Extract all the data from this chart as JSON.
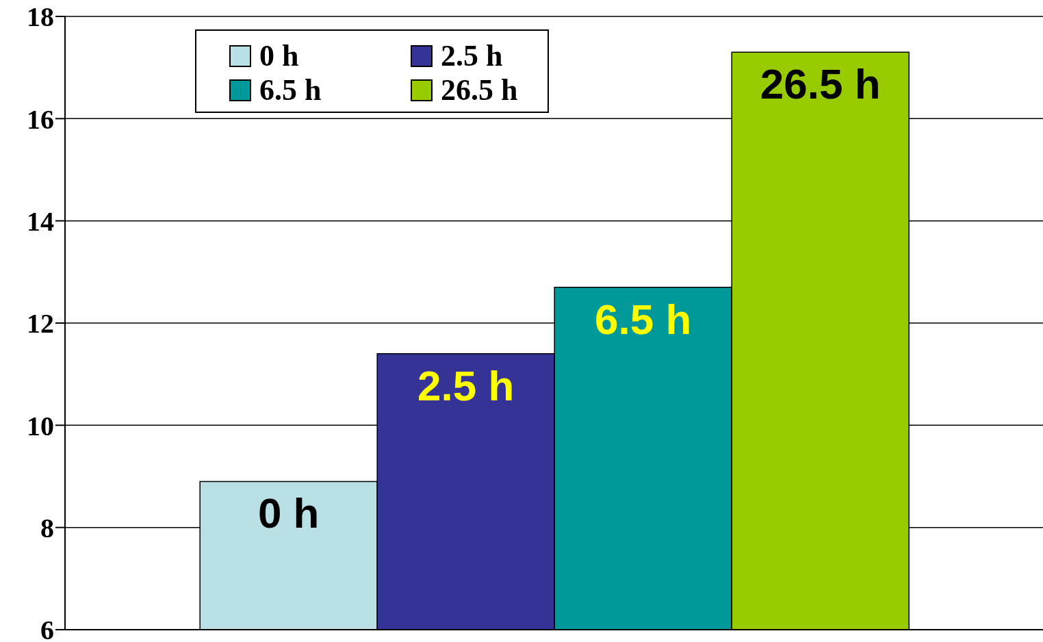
{
  "chart_data": {
    "type": "bar",
    "categories": [
      null
    ],
    "series": [
      {
        "name": "0 h",
        "color": "#b9e0e4",
        "values": [
          8.9
        ]
      },
      {
        "name": "2.5 h",
        "color": "#363396",
        "values": [
          11.4
        ]
      },
      {
        "name": "6.5 h",
        "color": "#009999",
        "values": [
          12.7
        ]
      },
      {
        "name": "26.5 h",
        "color": "#99cc00",
        "values": [
          17.3
        ]
      }
    ],
    "ylim": [
      6,
      18
    ],
    "yticks": [
      6,
      8,
      10,
      12,
      14,
      16,
      18
    ],
    "grid": "y",
    "legend": "top left"
  }
}
